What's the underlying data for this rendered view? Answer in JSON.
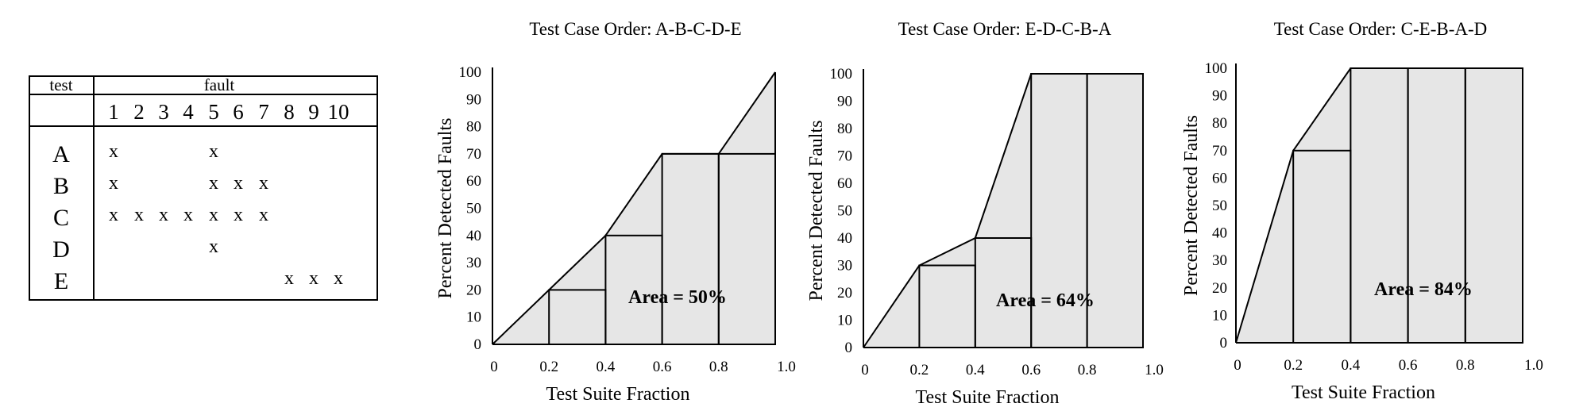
{
  "table": {
    "col_header_test": "test",
    "col_header_fault": "fault",
    "fault_numbers": [
      "1",
      "2",
      "3",
      "4",
      "5",
      "6",
      "7",
      "8",
      "9",
      "10"
    ],
    "mark": "x",
    "rows": [
      {
        "test": "A",
        "faults": [
          1,
          5
        ]
      },
      {
        "test": "B",
        "faults": [
          1,
          5,
          6,
          7
        ]
      },
      {
        "test": "C",
        "faults": [
          1,
          2,
          3,
          4,
          5,
          6,
          7
        ]
      },
      {
        "test": "D",
        "faults": [
          5
        ]
      },
      {
        "test": "E",
        "faults": [
          8,
          9,
          10
        ]
      }
    ]
  },
  "chart_data": [
    {
      "type": "area",
      "title": "Test Case Order: A-B-C-D-E",
      "xlabel": "Test Suite Fraction",
      "ylabel": "Percent Detected Faults",
      "xticks": [
        "0",
        "0.2",
        "0.4",
        "0.6",
        "0.8",
        "1.0"
      ],
      "yticks": [
        "0",
        "10",
        "20",
        "30",
        "40",
        "50",
        "60",
        "70",
        "80",
        "90",
        "100"
      ],
      "xlim": [
        0,
        1.0
      ],
      "ylim": [
        0,
        100
      ],
      "x": [
        0,
        0.2,
        0.4,
        0.6,
        0.8,
        1.0
      ],
      "y": [
        0,
        20,
        40,
        70,
        70,
        100
      ],
      "annotation": "Area = 50%"
    },
    {
      "type": "area",
      "title": "Test Case Order: E-D-C-B-A",
      "xlabel": "Test Suite Fraction",
      "ylabel": "Percent Detected Faults",
      "xticks": [
        "0",
        "0.2",
        "0.4",
        "0.6",
        "0.8",
        "1.0"
      ],
      "yticks": [
        "0",
        "10",
        "20",
        "30",
        "40",
        "50",
        "60",
        "70",
        "80",
        "90",
        "100"
      ],
      "xlim": [
        0,
        1.0
      ],
      "ylim": [
        0,
        100
      ],
      "x": [
        0,
        0.2,
        0.4,
        0.6,
        0.8,
        1.0
      ],
      "y": [
        0,
        30,
        40,
        100,
        100,
        100
      ],
      "annotation": "Area = 64%"
    },
    {
      "type": "area",
      "title": "Test Case Order: C-E-B-A-D",
      "xlabel": "Test Suite Fraction",
      "ylabel": "Percent Detected Faults",
      "xticks": [
        "0",
        "0.2",
        "0.4",
        "0.6",
        "0.8",
        "1.0"
      ],
      "yticks": [
        "0",
        "10",
        "20",
        "30",
        "40",
        "50",
        "60",
        "70",
        "80",
        "90",
        "100"
      ],
      "xlim": [
        0,
        1.0
      ],
      "ylim": [
        0,
        100
      ],
      "x": [
        0,
        0.2,
        0.4,
        0.6,
        0.8,
        1.0
      ],
      "y": [
        0,
        70,
        100,
        100,
        100,
        100
      ],
      "annotation": "Area = 84%"
    }
  ]
}
